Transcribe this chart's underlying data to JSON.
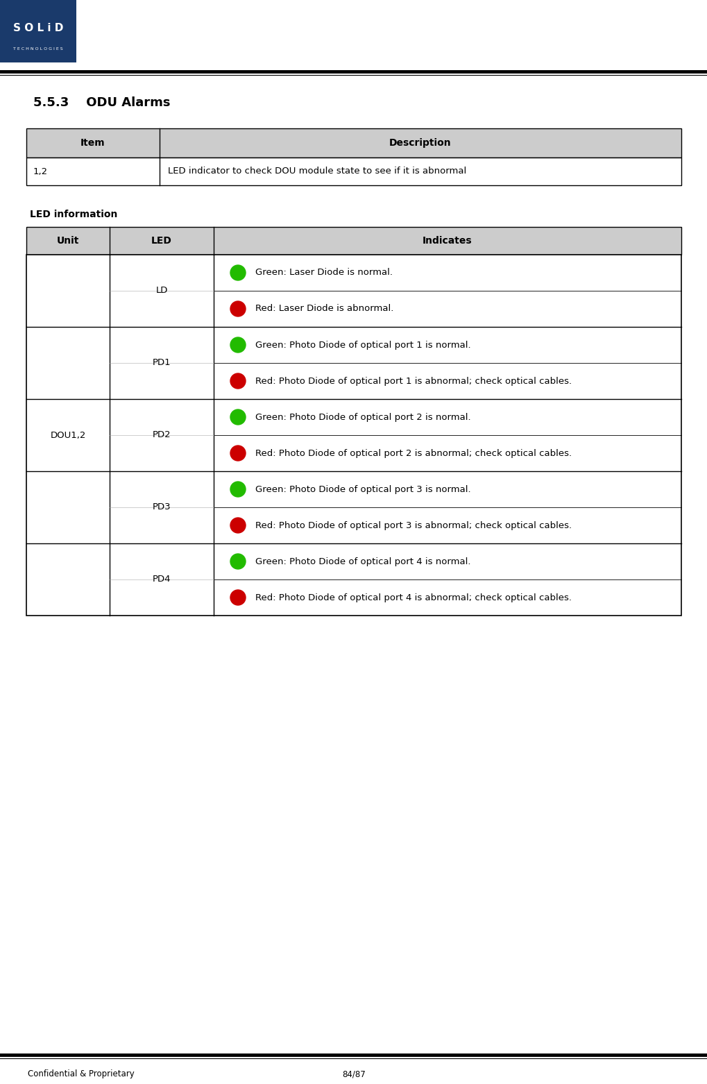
{
  "page_width": 10.2,
  "page_height": 15.62,
  "bg_color": "#ffffff",
  "logo_color": "#1a3a6b",
  "section_title": "5.5.3    ODU Alarms",
  "table1_header_bg": "#cccccc",
  "led_info_label": "LED information",
  "table2_header_bg": "#cccccc",
  "table2_rows": [
    {
      "led": "LD",
      "color": "green",
      "text": "Green: Laser Diode is normal."
    },
    {
      "led": "",
      "color": "red",
      "text": "Red: Laser Diode is abnormal."
    },
    {
      "led": "PD1",
      "color": "green",
      "text": "Green: Photo Diode of optical port 1 is normal."
    },
    {
      "led": "",
      "color": "red",
      "text": "Red: Photo Diode of optical port 1 is abnormal; check optical cables."
    },
    {
      "led": "PD2",
      "color": "green",
      "text": "Green: Photo Diode of optical port 2 is normal."
    },
    {
      "led": "",
      "color": "red",
      "text": "Red: Photo Diode of optical port 2 is abnormal; check optical cables."
    },
    {
      "led": "PD3",
      "color": "green",
      "text": "Green: Photo Diode of optical port 3 is normal."
    },
    {
      "led": "",
      "color": "red",
      "text": "Red: Photo Diode of optical port 3 is abnormal; check optical cables."
    },
    {
      "led": "PD4",
      "color": "green",
      "text": "Green: Photo Diode of optical port 4 is normal."
    },
    {
      "led": "",
      "color": "red",
      "text": "Red: Photo Diode of optical port 4 is abnormal; check optical cables."
    }
  ],
  "footer_left": "Confidential & Proprietary",
  "footer_right": "84/87",
  "green_color": "#22bb00",
  "red_color": "#cc0000",
  "border_color": "#000000",
  "text_color": "#000000"
}
